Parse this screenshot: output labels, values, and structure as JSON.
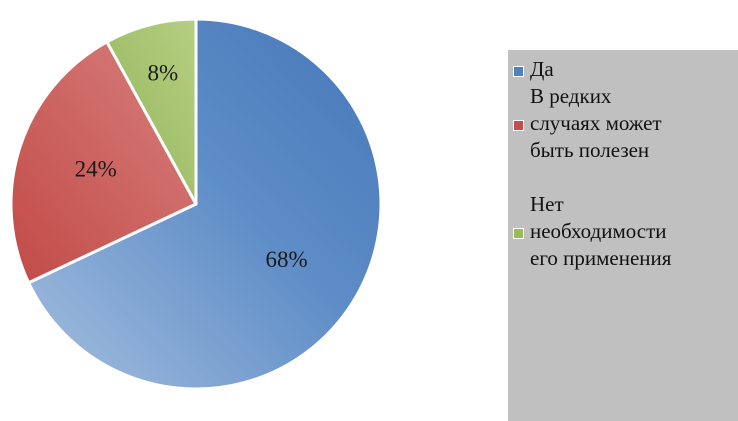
{
  "chart_data": {
    "type": "pie",
    "categories": [
      "Да",
      "В редких случаях может быть полезен",
      "Нет необходимости его применения"
    ],
    "values": [
      68,
      24,
      8
    ],
    "labels": [
      "68%",
      "24%",
      "8%"
    ],
    "colors": [
      "#4f81bd",
      "#c0504d",
      "#9bbb59"
    ],
    "start_angle_deg": 0,
    "direction": "clockwise",
    "legend_position": "right",
    "legend_background": "#c0c0c0"
  },
  "legend": {
    "entries": [
      {
        "label": "Да",
        "color": "#4f81bd"
      },
      {
        "label": "В редких\nслучаях может\nбыть полезен",
        "color": "#c0504d"
      },
      {
        "label": "Нет\nнеобходимости\nего применения",
        "color": "#9bbb59"
      }
    ]
  }
}
